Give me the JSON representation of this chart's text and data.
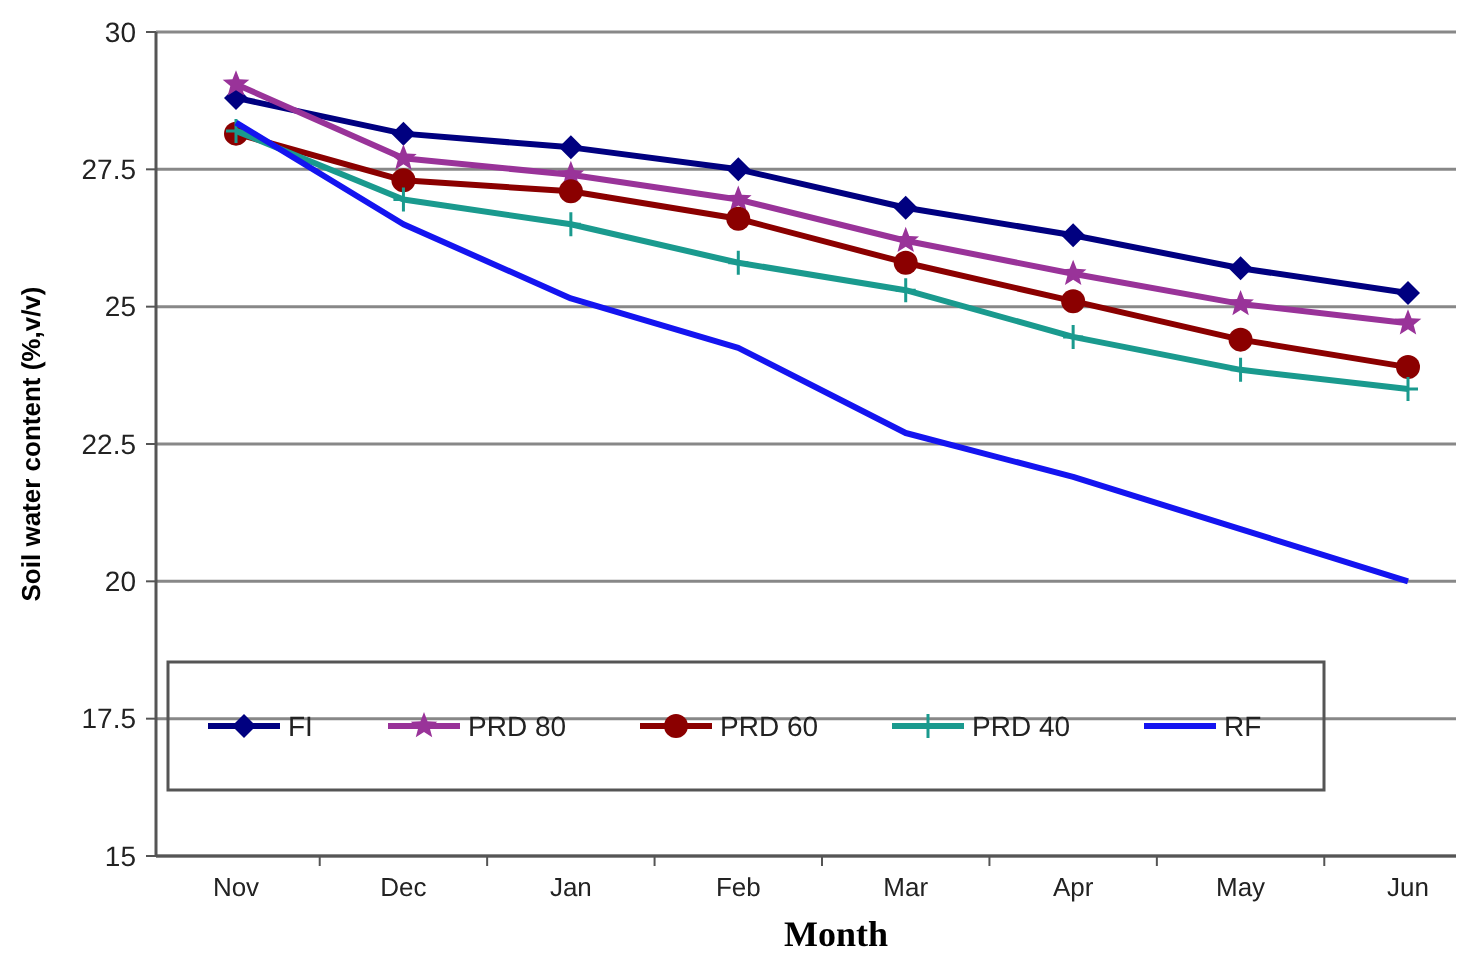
{
  "chart_data": {
    "type": "line",
    "xlabel": "Month",
    "ylabel": "Soil water content (%,v/v)",
    "categories": [
      "Nov",
      "Dec",
      "Jan",
      "Feb",
      "Mar",
      "Apr",
      "May",
      "Jun"
    ],
    "ylim": [
      15,
      30
    ],
    "yticks": [
      15,
      17.5,
      20,
      22.5,
      25,
      27.5,
      30
    ],
    "grid": "y",
    "legend": "bottom",
    "series": [
      {
        "name": "FI",
        "color": "#000080",
        "marker": "diamond",
        "values": [
          28.8,
          28.15,
          27.9,
          27.5,
          26.8,
          26.3,
          25.7,
          25.25
        ]
      },
      {
        "name": "PRD 80",
        "color": "#993399",
        "marker": "star",
        "values": [
          29.05,
          27.7,
          27.4,
          26.95,
          26.2,
          25.6,
          25.05,
          24.7
        ]
      },
      {
        "name": "PRD 60",
        "color": "#8b0000",
        "marker": "circle",
        "values": [
          28.15,
          27.3,
          27.1,
          26.6,
          25.8,
          25.1,
          24.4,
          23.9
        ]
      },
      {
        "name": "PRD 40",
        "color": "#1a9a8e",
        "marker": "cross",
        "values": [
          28.2,
          26.95,
          26.5,
          25.8,
          25.3,
          24.45,
          23.85,
          23.5
        ]
      },
      {
        "name": "RF",
        "color": "#1414f0",
        "marker": "none",
        "values": [
          28.35,
          26.5,
          25.15,
          24.25,
          22.7,
          21.9,
          20.95,
          20
        ]
      }
    ]
  }
}
